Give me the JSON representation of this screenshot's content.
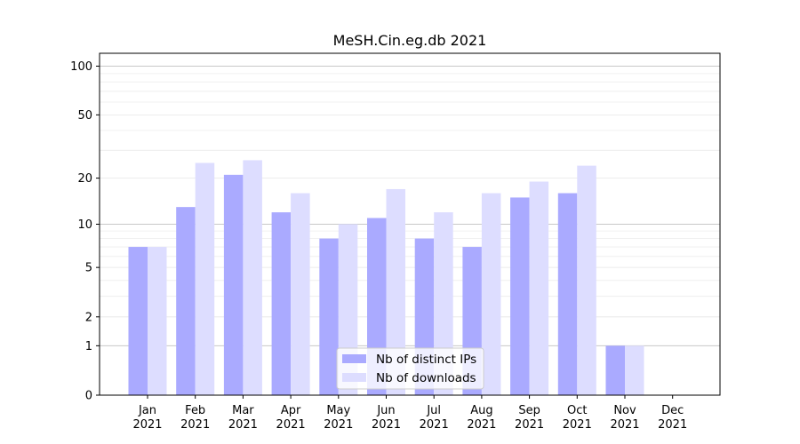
{
  "chart_data": {
    "type": "bar",
    "title": "MeSH.Cin.eg.db 2021",
    "xlabel": "",
    "ylabel": "",
    "y_scale": "log(1+y)",
    "ylim": [
      0,
      120
    ],
    "y_ticks": [
      0,
      1,
      2,
      5,
      10,
      20,
      50,
      100
    ],
    "grid": true,
    "legend_position": "bottom-center",
    "categories": [
      [
        "Jan",
        "2021"
      ],
      [
        "Feb",
        "2021"
      ],
      [
        "Mar",
        "2021"
      ],
      [
        "Apr",
        "2021"
      ],
      [
        "May",
        "2021"
      ],
      [
        "Jun",
        "2021"
      ],
      [
        "Jul",
        "2021"
      ],
      [
        "Aug",
        "2021"
      ],
      [
        "Sep",
        "2021"
      ],
      [
        "Oct",
        "2021"
      ],
      [
        "Nov",
        "2021"
      ],
      [
        "Dec",
        "2021"
      ]
    ],
    "series": [
      {
        "name": "Nb of distinct IPs",
        "color": "#aaaaff",
        "values": [
          7,
          13,
          21,
          12,
          8,
          11,
          8,
          7,
          15,
          16,
          1,
          0
        ]
      },
      {
        "name": "Nb of downloads",
        "color": "#ddddff",
        "values": [
          7,
          25,
          26,
          16,
          10,
          17,
          12,
          16,
          19,
          24,
          1,
          0
        ]
      }
    ]
  }
}
